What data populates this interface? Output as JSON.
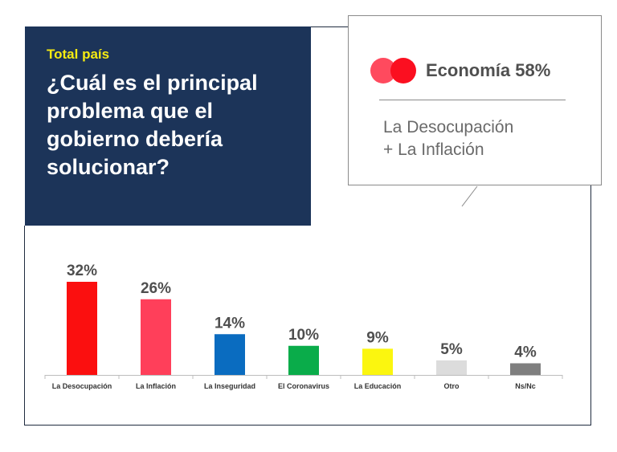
{
  "header": {
    "subtitle": "Total país",
    "question": "¿Cuál es el principal problema que el gobierno debería solucionar?"
  },
  "callout": {
    "value": "Economía 58%",
    "detail_line1": "La Desocupación",
    "detail_line2": "+ La Inflación"
  },
  "chart_data": {
    "type": "bar",
    "title": "¿Cuál es el principal problema que el gobierno debería solucionar?",
    "subtitle": "Total país",
    "xlabel": "",
    "ylabel": "",
    "ylim": [
      0,
      35
    ],
    "grid": false,
    "categories": [
      "La Desocupación",
      "La Inflación",
      "La Inseguridad",
      "El Coronavirus",
      "La Educación",
      "Otro",
      "Ns/Nc"
    ],
    "values": [
      32,
      26,
      14,
      10,
      9,
      5,
      4
    ],
    "labels": [
      "32%",
      "26%",
      "14%",
      "10%",
      "9%",
      "5%",
      "4%"
    ],
    "colors": [
      "#fb0f0f",
      "#ff3f5a",
      "#0a6cc0",
      "#0aac4a",
      "#fbf60f",
      "#dcdcdc",
      "#7f7f7f"
    ]
  }
}
